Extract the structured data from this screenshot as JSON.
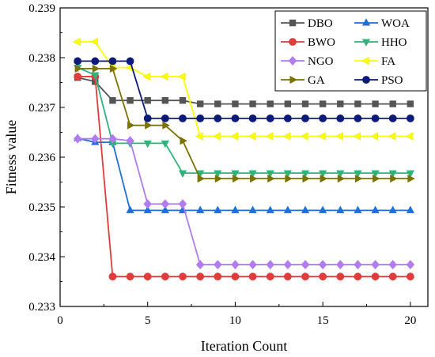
{
  "chart_data": {
    "type": "line",
    "title": "",
    "xlabel": "Iteration Count",
    "ylabel": "Fitness value",
    "xlim": [
      0,
      21
    ],
    "ylim": [
      0.233,
      0.239
    ],
    "xticks": [
      0,
      5,
      10,
      15,
      20
    ],
    "yticks": [
      0.233,
      0.234,
      0.235,
      0.236,
      0.237,
      0.238,
      0.239
    ],
    "ytick_labels": [
      "0.233",
      "0.234",
      "0.235",
      "0.236",
      "0.237",
      "0.238",
      "0.239"
    ],
    "grid": false,
    "legend": {
      "position": "top-right",
      "columns": 2
    },
    "x": [
      1,
      2,
      3,
      4,
      5,
      6,
      7,
      8,
      9,
      10,
      11,
      12,
      13,
      14,
      15,
      16,
      17,
      18,
      19,
      20
    ],
    "series": [
      {
        "name": "DBO",
        "color": "#555555",
        "marker": "square",
        "values": [
          0.2376,
          0.23752,
          0.23714,
          0.23714,
          0.23714,
          0.23714,
          0.23714,
          0.23707,
          0.23707,
          0.23707,
          0.23707,
          0.23707,
          0.23707,
          0.23707,
          0.23707,
          0.23707,
          0.23707,
          0.23707,
          0.23707,
          0.23707
        ]
      },
      {
        "name": "WOA",
        "color": "#1e6fd9",
        "marker": "triangle-up",
        "values": [
          0.23638,
          0.2363,
          0.2363,
          0.23493,
          0.23493,
          0.23493,
          0.23493,
          0.23493,
          0.23493,
          0.23493,
          0.23493,
          0.23493,
          0.23493,
          0.23493,
          0.23493,
          0.23493,
          0.23493,
          0.23493,
          0.23493,
          0.23493
        ]
      },
      {
        "name": "BWO",
        "color": "#e03c3c",
        "marker": "circle",
        "values": [
          0.23762,
          0.23762,
          0.2336,
          0.2336,
          0.2336,
          0.2336,
          0.2336,
          0.2336,
          0.2336,
          0.2336,
          0.2336,
          0.2336,
          0.2336,
          0.2336,
          0.2336,
          0.2336,
          0.2336,
          0.2336,
          0.2336,
          0.2336
        ]
      },
      {
        "name": "HHO",
        "color": "#2fb37a",
        "marker": "triangle-down",
        "values": [
          0.2378,
          0.23765,
          0.23628,
          0.23628,
          0.23628,
          0.23628,
          0.23568,
          0.23568,
          0.23568,
          0.23568,
          0.23568,
          0.23568,
          0.23568,
          0.23568,
          0.23568,
          0.23568,
          0.23568,
          0.23568,
          0.23568,
          0.23568
        ]
      },
      {
        "name": "NGO",
        "color": "#b07cf0",
        "marker": "diamond",
        "values": [
          0.23637,
          0.23637,
          0.23637,
          0.23633,
          0.23506,
          0.23506,
          0.23506,
          0.23384,
          0.23384,
          0.23384,
          0.23384,
          0.23384,
          0.23384,
          0.23384,
          0.23384,
          0.23384,
          0.23384,
          0.23384,
          0.23384,
          0.23384
        ]
      },
      {
        "name": "FA",
        "color": "#ffff00",
        "marker": "triangle-left",
        "values": [
          0.23832,
          0.23832,
          0.2378,
          0.2378,
          0.23762,
          0.23762,
          0.23762,
          0.23642,
          0.23642,
          0.23642,
          0.23642,
          0.23642,
          0.23642,
          0.23642,
          0.23642,
          0.23642,
          0.23642,
          0.23642,
          0.23642,
          0.23642
        ]
      },
      {
        "name": "GA",
        "color": "#7c7200",
        "marker": "triangle-right",
        "values": [
          0.23778,
          0.23778,
          0.23778,
          0.23664,
          0.23664,
          0.23664,
          0.23633,
          0.23557,
          0.23557,
          0.23557,
          0.23557,
          0.23557,
          0.23557,
          0.23557,
          0.23557,
          0.23557,
          0.23557,
          0.23557,
          0.23557,
          0.23557
        ]
      },
      {
        "name": "PSO",
        "color": "#0c1a78",
        "marker": "hexagon",
        "values": [
          0.23793,
          0.23793,
          0.23793,
          0.23793,
          0.23678,
          0.23678,
          0.23678,
          0.23678,
          0.23678,
          0.23678,
          0.23678,
          0.23678,
          0.23678,
          0.23678,
          0.23678,
          0.23678,
          0.23678,
          0.23678,
          0.23678,
          0.23678
        ]
      }
    ]
  }
}
